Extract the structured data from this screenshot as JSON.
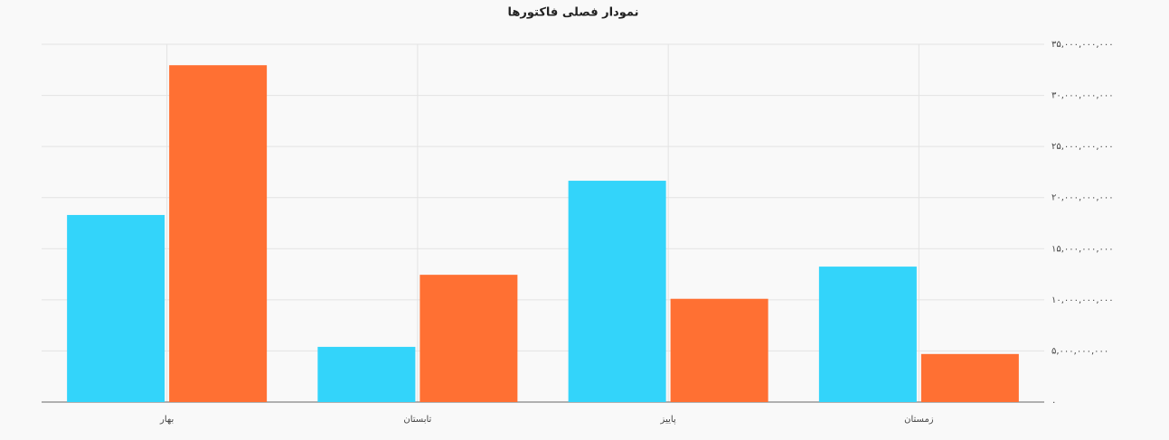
{
  "chart_data": {
    "type": "bar",
    "title": "نمودار فصلی فاکتورها",
    "categories": [
      "بهار",
      "تابستان",
      "پاییز",
      "زمستان"
    ],
    "series": [
      {
        "color": "#33d4fa",
        "values": [
          18300000000,
          5400000000,
          21650000000,
          13250000000
        ]
      },
      {
        "color": "#ff7033",
        "values": [
          32950000000,
          12450000000,
          10100000000,
          4700000000
        ]
      }
    ],
    "ylim": [
      0,
      35000000000
    ],
    "yticks": [
      {
        "value": 0,
        "label": "۰"
      },
      {
        "value": 5000000000,
        "label": "۵,۰۰۰,۰۰۰,۰۰۰"
      },
      {
        "value": 10000000000,
        "label": "۱۰,۰۰۰,۰۰۰,۰۰۰"
      },
      {
        "value": 15000000000,
        "label": "۱۵,۰۰۰,۰۰۰,۰۰۰"
      },
      {
        "value": 20000000000,
        "label": "۲۰,۰۰۰,۰۰۰,۰۰۰"
      },
      {
        "value": 25000000000,
        "label": "۲۵,۰۰۰,۰۰۰,۰۰۰"
      },
      {
        "value": 30000000000,
        "label": "۳۰,۰۰۰,۰۰۰,۰۰۰"
      },
      {
        "value": 35000000000,
        "label": "۳۵,۰۰۰,۰۰۰,۰۰۰"
      }
    ],
    "grid": true
  }
}
